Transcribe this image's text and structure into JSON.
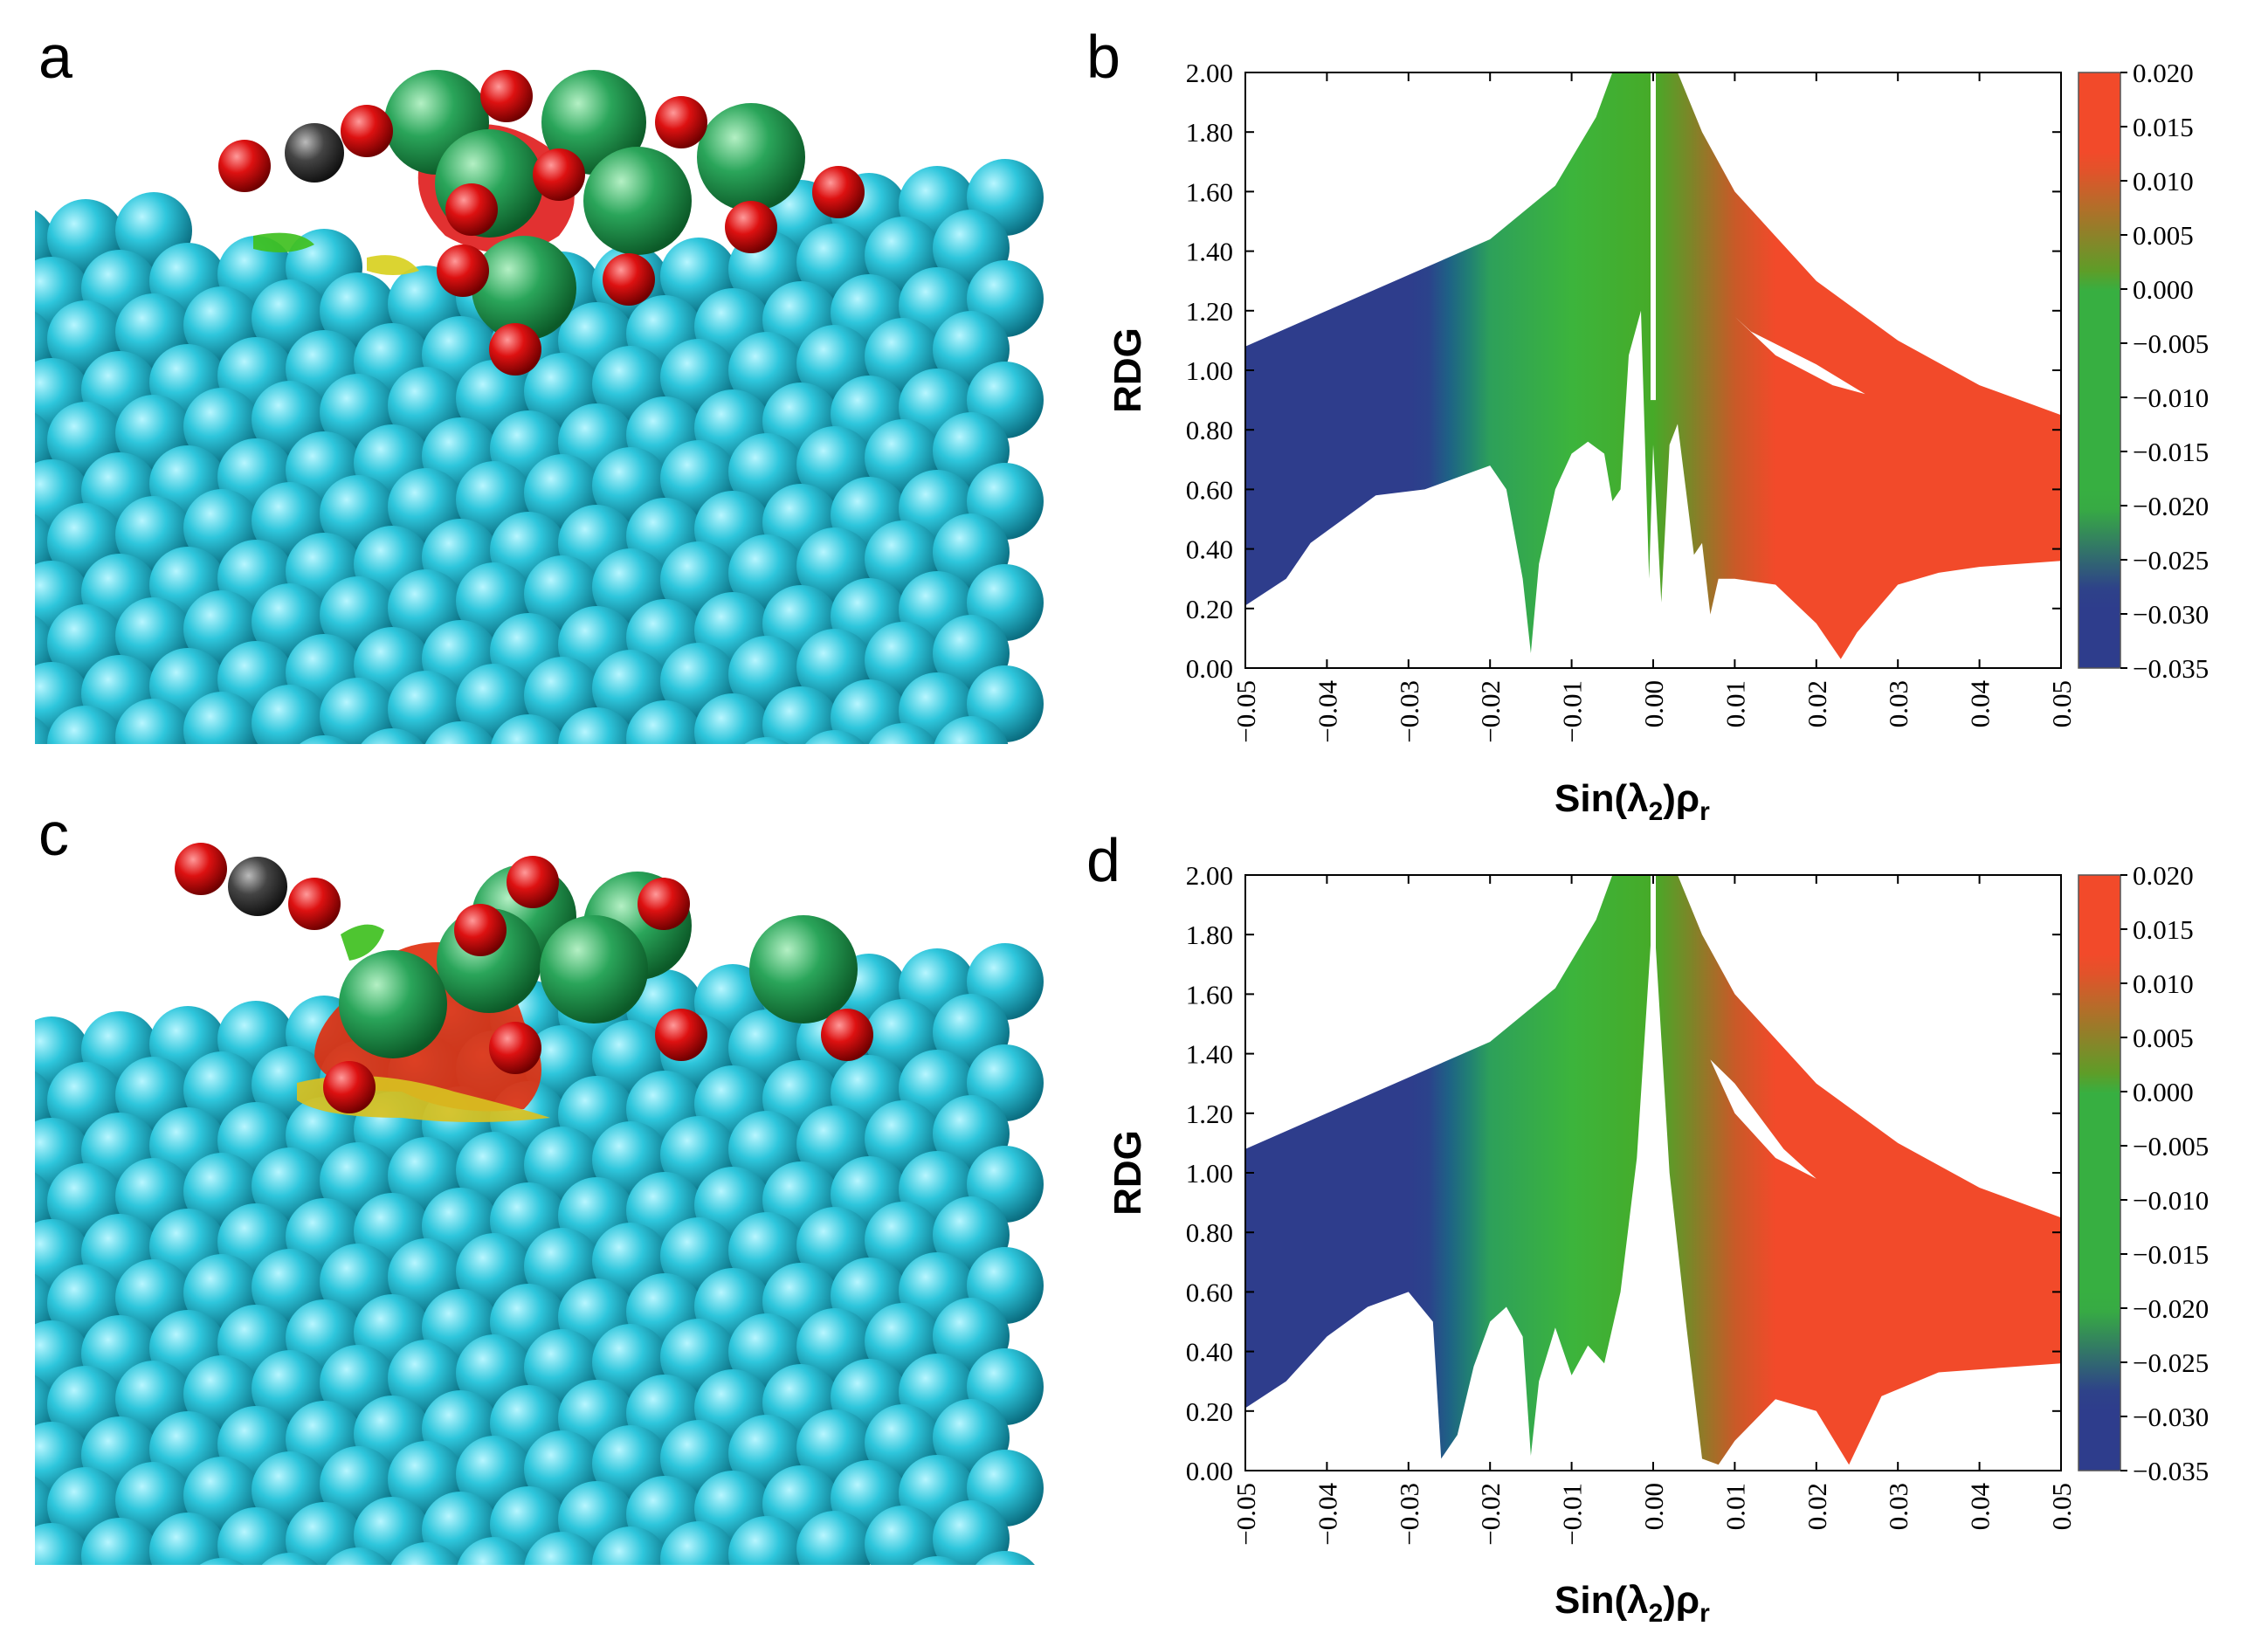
{
  "panels": {
    "a": {
      "letter": "a"
    },
    "b": {
      "letter": "b"
    },
    "c": {
      "letter": "c"
    },
    "d": {
      "letter": "d"
    }
  },
  "colors": {
    "surface_atom": "#2ec6dc",
    "large_atom": "#2aa55a",
    "oxygen": "#dd1111",
    "carbon": "#444444",
    "scatter_blue": "#2e3d8c",
    "scatter_green": "#3cb43c",
    "scatter_red": "#f24a2a"
  },
  "chart_data": [
    {
      "panel": "b",
      "type": "scatter",
      "xlabel_main": "Sin(λ",
      "xlabel_sub1": "2",
      "xlabel_mid": ")ρ",
      "xlabel_sub2": "r",
      "ylabel": "RDG",
      "xlim": [
        -0.05,
        0.05
      ],
      "ylim": [
        0.0,
        2.0
      ],
      "x_ticks": [
        "−0.05",
        "−0.04",
        "−0.03",
        "−0.02",
        "−0.01",
        "0.00",
        "0.01",
        "0.02",
        "0.03",
        "0.04",
        "0.05"
      ],
      "y_ticks": [
        "0.00",
        "0.20",
        "0.40",
        "0.60",
        "0.80",
        "1.00",
        "1.20",
        "1.40",
        "1.60",
        "1.80",
        "2.00"
      ],
      "colorbar_ticks": [
        "0.020",
        "0.015",
        "0.010",
        "0.005",
        "0.000",
        "−0.005",
        "−0.010",
        "−0.015",
        "−0.020",
        "−0.025",
        "−0.030",
        "−0.035"
      ],
      "colorbar_range": [
        -0.035,
        0.02
      ],
      "upper_envelope": [
        [
          -0.05,
          1.08
        ],
        [
          -0.04,
          1.2
        ],
        [
          -0.03,
          1.32
        ],
        [
          -0.02,
          1.44
        ],
        [
          -0.012,
          1.62
        ],
        [
          -0.007,
          1.85
        ],
        [
          -0.005,
          2.0
        ],
        [
          0.003,
          2.0
        ],
        [
          0.006,
          1.8
        ],
        [
          0.01,
          1.6
        ],
        [
          0.02,
          1.3
        ],
        [
          0.03,
          1.1
        ],
        [
          0.04,
          0.95
        ],
        [
          0.05,
          0.85
        ]
      ],
      "lower_envelope": [
        [
          -0.05,
          0.21
        ],
        [
          -0.045,
          0.3
        ],
        [
          -0.042,
          0.42
        ],
        [
          -0.038,
          0.5
        ],
        [
          -0.034,
          0.58
        ],
        [
          -0.028,
          0.6
        ],
        [
          -0.022,
          0.66
        ],
        [
          -0.02,
          0.68
        ],
        [
          -0.018,
          0.6
        ],
        [
          -0.016,
          0.3
        ],
        [
          -0.015,
          0.05
        ],
        [
          -0.014,
          0.35
        ],
        [
          -0.012,
          0.6
        ],
        [
          -0.01,
          0.72
        ],
        [
          -0.008,
          0.76
        ],
        [
          -0.006,
          0.72
        ],
        [
          -0.005,
          0.56
        ],
        [
          -0.004,
          0.6
        ],
        [
          -0.003,
          1.05
        ],
        [
          -0.0015,
          1.2
        ],
        [
          -0.0005,
          0.3
        ],
        [
          0.0,
          0.75
        ],
        [
          0.001,
          0.22
        ],
        [
          0.002,
          0.75
        ],
        [
          0.003,
          0.82
        ],
        [
          0.004,
          0.6
        ],
        [
          0.005,
          0.38
        ],
        [
          0.006,
          0.42
        ],
        [
          0.007,
          0.18
        ],
        [
          0.008,
          0.3
        ],
        [
          0.01,
          0.3
        ],
        [
          0.015,
          0.28
        ],
        [
          0.02,
          0.15
        ],
        [
          0.023,
          0.03
        ],
        [
          0.025,
          0.12
        ],
        [
          0.03,
          0.28
        ],
        [
          0.035,
          0.32
        ],
        [
          0.04,
          0.34
        ],
        [
          0.05,
          0.36
        ]
      ],
      "hole": [
        [
          0.01,
          1.18
        ],
        [
          0.015,
          1.05
        ],
        [
          0.022,
          0.95
        ],
        [
          0.026,
          0.92
        ],
        [
          0.02,
          1.02
        ],
        [
          0.012,
          1.13
        ]
      ]
    },
    {
      "panel": "d",
      "type": "scatter",
      "xlabel_main": "Sin(λ",
      "xlabel_sub1": "2",
      "xlabel_mid": ")ρ",
      "xlabel_sub2": "r",
      "ylabel": "RDG",
      "xlim": [
        -0.05,
        0.05
      ],
      "ylim": [
        0.0,
        2.0
      ],
      "x_ticks": [
        "−0.05",
        "−0.04",
        "−0.03",
        "−0.02",
        "−0.01",
        "0.00",
        "0.01",
        "0.02",
        "0.03",
        "0.04",
        "0.05"
      ],
      "y_ticks": [
        "0.00",
        "0.20",
        "0.40",
        "0.60",
        "0.80",
        "1.00",
        "1.20",
        "1.40",
        "1.60",
        "1.80",
        "2.00"
      ],
      "colorbar_ticks": [
        "0.020",
        "0.015",
        "0.010",
        "0.005",
        "0.000",
        "−0.005",
        "−0.010",
        "−0.015",
        "−0.020",
        "−0.025",
        "−0.030",
        "−0.035"
      ],
      "colorbar_range": [
        -0.035,
        0.02
      ],
      "upper_envelope": [
        [
          -0.05,
          1.08
        ],
        [
          -0.04,
          1.2
        ],
        [
          -0.03,
          1.32
        ],
        [
          -0.02,
          1.44
        ],
        [
          -0.012,
          1.62
        ],
        [
          -0.007,
          1.85
        ],
        [
          -0.005,
          2.0
        ],
        [
          0.003,
          2.0
        ],
        [
          0.006,
          1.8
        ],
        [
          0.01,
          1.6
        ],
        [
          0.02,
          1.3
        ],
        [
          0.03,
          1.1
        ],
        [
          0.04,
          0.95
        ],
        [
          0.05,
          0.85
        ]
      ],
      "lower_envelope": [
        [
          -0.05,
          0.21
        ],
        [
          -0.045,
          0.3
        ],
        [
          -0.04,
          0.45
        ],
        [
          -0.035,
          0.55
        ],
        [
          -0.03,
          0.6
        ],
        [
          -0.027,
          0.5
        ],
        [
          -0.026,
          0.04
        ],
        [
          -0.024,
          0.12
        ],
        [
          -0.022,
          0.35
        ],
        [
          -0.02,
          0.5
        ],
        [
          -0.018,
          0.55
        ],
        [
          -0.016,
          0.45
        ],
        [
          -0.015,
          0.05
        ],
        [
          -0.014,
          0.3
        ],
        [
          -0.012,
          0.48
        ],
        [
          -0.01,
          0.32
        ],
        [
          -0.008,
          0.42
        ],
        [
          -0.006,
          0.36
        ],
        [
          -0.004,
          0.6
        ],
        [
          -0.002,
          1.05
        ],
        [
          0.0,
          1.9
        ],
        [
          0.002,
          1.0
        ],
        [
          0.004,
          0.5
        ],
        [
          0.006,
          0.04
        ],
        [
          0.008,
          0.02
        ],
        [
          0.01,
          0.1
        ],
        [
          0.015,
          0.24
        ],
        [
          0.02,
          0.2
        ],
        [
          0.024,
          0.02
        ],
        [
          0.028,
          0.25
        ],
        [
          0.035,
          0.33
        ],
        [
          0.04,
          0.34
        ],
        [
          0.05,
          0.36
        ]
      ],
      "hole": [
        [
          0.007,
          1.38
        ],
        [
          0.01,
          1.2
        ],
        [
          0.015,
          1.05
        ],
        [
          0.02,
          0.98
        ],
        [
          0.016,
          1.08
        ],
        [
          0.01,
          1.3
        ]
      ]
    }
  ]
}
